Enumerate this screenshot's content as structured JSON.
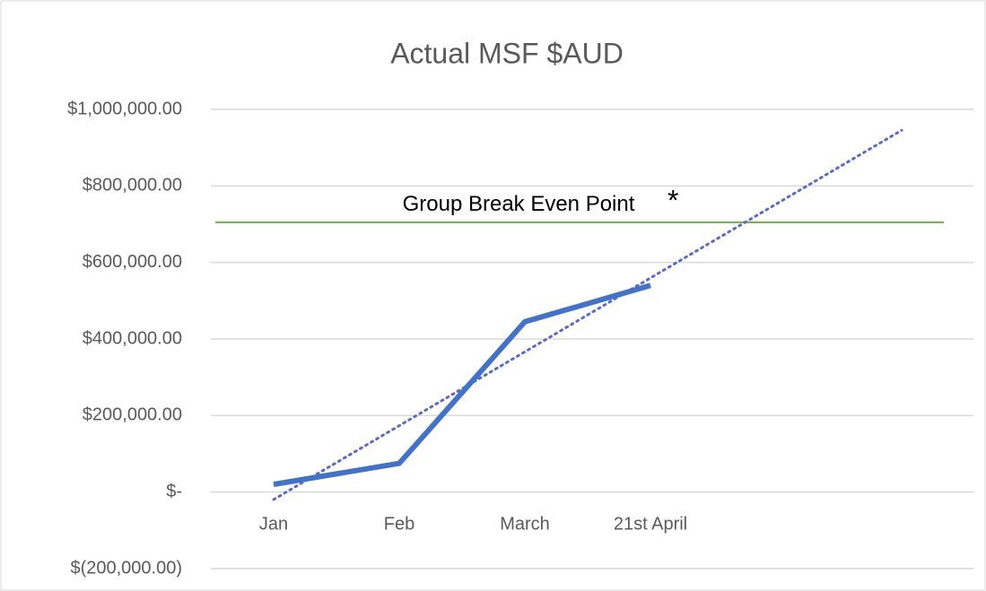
{
  "chart_data": {
    "type": "line",
    "title": "Actual MSF $AUD",
    "categories": [
      "Jan",
      "Feb",
      "March",
      "21st April",
      null,
      null
    ],
    "values": [
      20000,
      75000,
      445000,
      540000,
      null,
      null
    ],
    "color": "#4472c4",
    "trendline": {
      "color": "#5b6bbf",
      "style": "dotted",
      "values": [
        -19500,
        173500,
        366500,
        559500,
        752500,
        945500
      ]
    },
    "reference_line": {
      "value": 705000,
      "label": "Group Break Even Point",
      "color": "#70ad47"
    },
    "annotation": "*",
    "ylim": [
      -200000,
      1000000
    ],
    "yticks": [
      {
        "value": -200000,
        "label": "$(200,000.00)"
      },
      {
        "value": 0,
        "label": "$-"
      },
      {
        "value": 200000,
        "label": "$200,000.00"
      },
      {
        "value": 400000,
        "label": "$400,000.00"
      },
      {
        "value": 600000,
        "label": "$600,000.00"
      },
      {
        "value": 800000,
        "label": "$800,000.00"
      },
      {
        "value": 1000000,
        "label": "$1,000,000.00"
      }
    ],
    "grid": true
  }
}
